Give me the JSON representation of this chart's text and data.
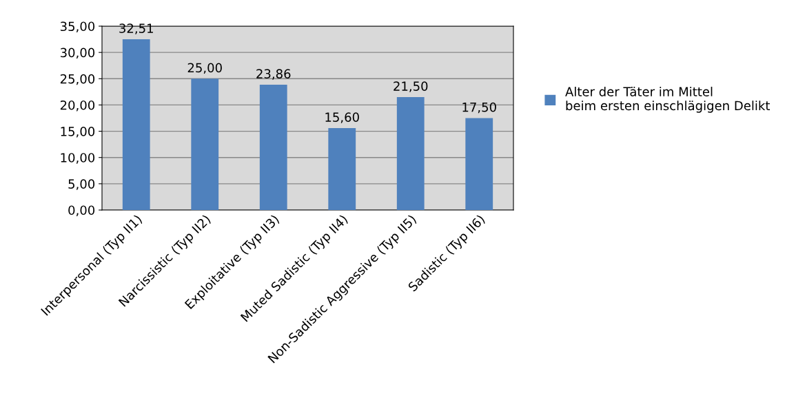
{
  "chart_data": {
    "type": "bar",
    "categories": [
      "Interpersonal (Typ II1)",
      "Narcissistic (Typ II2)",
      "Exploitative (Typ II3)",
      "Muted Sadistic (Typ II4)",
      "Non-Sadistic Aggressive (Typ II5)",
      "Sadistic (Typ II6)"
    ],
    "series": [
      {
        "name": "Alter der Täter im Mittel beim ersten einschlägigen Delikt",
        "color": "#4f81bd",
        "values": [
          32.51,
          25.0,
          23.86,
          15.6,
          21.5,
          17.5
        ],
        "value_labels": [
          "32,51",
          "25,00",
          "23,86",
          "15,60",
          "21,50",
          "17,50"
        ]
      }
    ],
    "ylim": [
      0,
      35
    ],
    "yticks": [
      {
        "value": 0,
        "label": "0,00"
      },
      {
        "value": 5,
        "label": "5,00"
      },
      {
        "value": 10,
        "label": "10,00"
      },
      {
        "value": 15,
        "label": "15,00"
      },
      {
        "value": 20,
        "label": "20,00"
      },
      {
        "value": 25,
        "label": "25,00"
      },
      {
        "value": 30,
        "label": "30,00"
      },
      {
        "value": 35,
        "label": "35,00"
      }
    ],
    "grid": "y",
    "legend": "right"
  }
}
